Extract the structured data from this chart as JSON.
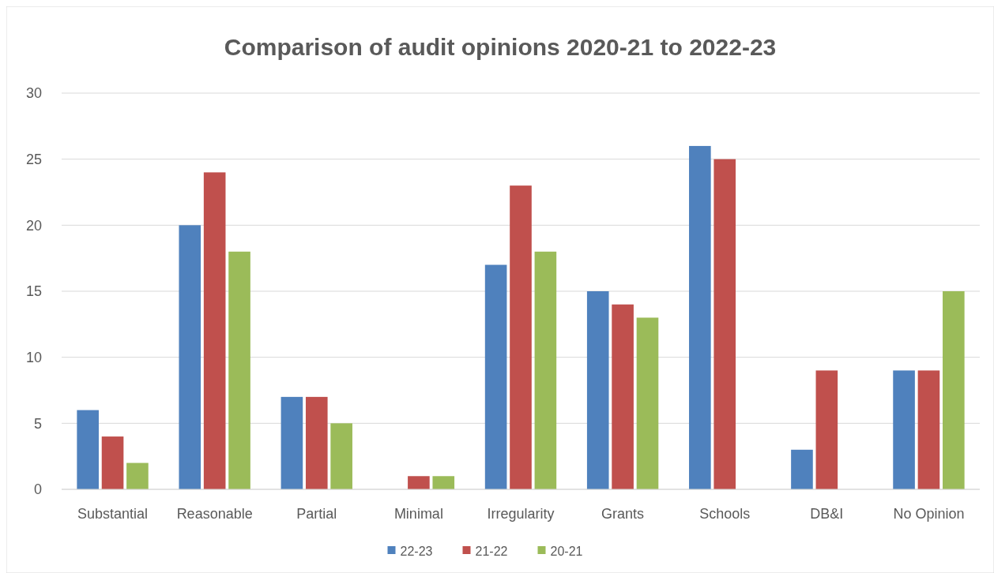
{
  "chart_data": {
    "type": "bar",
    "title": "Comparison of audit opinions 2020-21 to 2022-23",
    "categories": [
      "Substantial",
      "Reasonable",
      "Partial",
      "Minimal",
      "Irregularity",
      "Grants",
      "Schools",
      "DB&I",
      "No Opinion"
    ],
    "series": [
      {
        "name": "22-23",
        "color": "#4f81bd",
        "values": [
          6,
          20,
          7,
          0,
          17,
          15,
          26,
          3,
          9
        ]
      },
      {
        "name": "21-22",
        "color": "#c0504d",
        "values": [
          4,
          24,
          7,
          1,
          23,
          14,
          25,
          9,
          9
        ]
      },
      {
        "name": "20-21",
        "color": "#9bbb59",
        "values": [
          2,
          18,
          5,
          1,
          18,
          13,
          0,
          0,
          15
        ]
      }
    ],
    "ylim": [
      0,
      30
    ],
    "yticks": [
      0,
      5,
      10,
      15,
      20,
      25,
      30
    ],
    "grid": "y",
    "legend": "bottom"
  }
}
